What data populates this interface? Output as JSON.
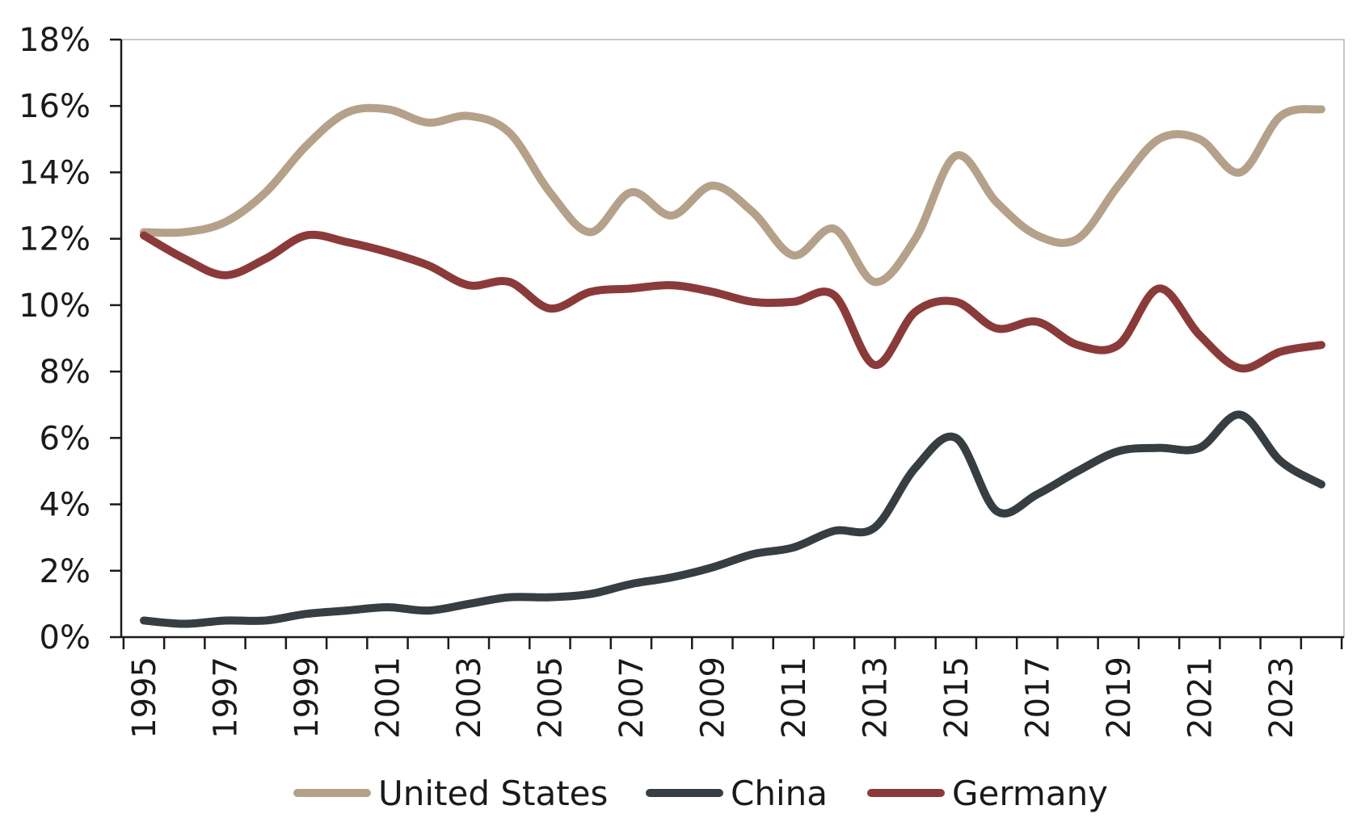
{
  "chart_data": {
    "type": "line",
    "title": "",
    "xlabel": "",
    "ylabel": "",
    "ylim": [
      0,
      18
    ],
    "y_ticks": [
      0,
      2,
      4,
      6,
      8,
      10,
      12,
      14,
      16,
      18
    ],
    "y_tick_labels": [
      "0%",
      "2%",
      "4%",
      "6%",
      "8%",
      "10%",
      "12%",
      "14%",
      "16%",
      "18%"
    ],
    "x": [
      1995,
      1996,
      1997,
      1998,
      1999,
      2000,
      2001,
      2002,
      2003,
      2004,
      2005,
      2006,
      2007,
      2008,
      2009,
      2010,
      2011,
      2012,
      2013,
      2014,
      2015,
      2016,
      2017,
      2018,
      2019,
      2020,
      2021,
      2022,
      2023,
      2024
    ],
    "x_tick_labels": [
      "1995",
      "1997",
      "1999",
      "2001",
      "2003",
      "2005",
      "2007",
      "2009",
      "2011",
      "2013",
      "2015",
      "2017",
      "2019",
      "2021",
      "2023"
    ],
    "grid": false,
    "legend_position": "bottom",
    "series": [
      {
        "name": "United States",
        "color": "#b5a18a",
        "values": [
          12.2,
          12.2,
          12.5,
          13.4,
          14.8,
          15.8,
          15.9,
          15.5,
          15.7,
          15.2,
          13.4,
          12.2,
          13.4,
          12.7,
          13.6,
          12.8,
          11.5,
          12.3,
          10.7,
          12.0,
          14.5,
          13.1,
          12.1,
          12.0,
          13.6,
          15.0,
          15.0,
          14.0,
          15.7,
          15.9
        ]
      },
      {
        "name": "China",
        "color": "#363e41",
        "values": [
          0.5,
          0.4,
          0.5,
          0.5,
          0.7,
          0.8,
          0.9,
          0.8,
          1.0,
          1.2,
          1.2,
          1.3,
          1.6,
          1.8,
          2.1,
          2.5,
          2.7,
          3.2,
          3.3,
          5.1,
          6.0,
          3.8,
          4.3,
          5.0,
          5.6,
          5.7,
          5.7,
          6.7,
          5.3,
          4.6
        ]
      },
      {
        "name": "Germany",
        "color": "#8b3a3a",
        "values": [
          12.1,
          11.4,
          10.9,
          11.4,
          12.1,
          11.9,
          11.6,
          11.2,
          10.6,
          10.7,
          9.9,
          10.4,
          10.5,
          10.6,
          10.4,
          10.1,
          10.1,
          10.3,
          8.2,
          9.8,
          10.1,
          9.3,
          9.5,
          8.8,
          8.8,
          10.5,
          9.1,
          8.1,
          8.6,
          8.8
        ]
      }
    ]
  }
}
